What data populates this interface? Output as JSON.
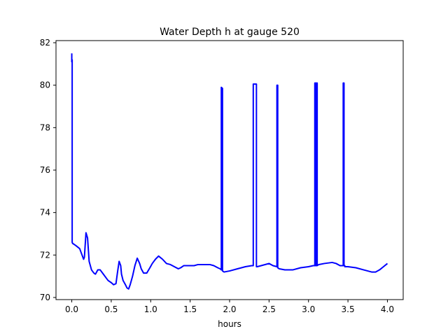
{
  "chart_data": {
    "type": "line",
    "title": "Water Depth h at gauge 520",
    "xlabel": "hours",
    "ylabel": "",
    "xlim": [
      -0.2,
      4.2
    ],
    "ylim": [
      69.9,
      82.1
    ],
    "xticks": [
      0.0,
      0.5,
      1.0,
      1.5,
      2.0,
      2.5,
      3.0,
      3.5,
      4.0
    ],
    "xtick_labels": [
      "0.0",
      "0.5",
      "1.0",
      "1.5",
      "2.0",
      "2.5",
      "3.0",
      "3.5",
      "4.0"
    ],
    "yticks": [
      70,
      72,
      74,
      76,
      78,
      80,
      82
    ],
    "ytick_labels": [
      "70",
      "72",
      "74",
      "76",
      "78",
      "80",
      "82"
    ],
    "grid": false,
    "line_color": "#0000ff",
    "series": [
      {
        "x": [
          0.0,
          0.0,
          0.005,
          0.005,
          0.01,
          0.01,
          0.05,
          0.1,
          0.13,
          0.15,
          0.16,
          0.18,
          0.2,
          0.22,
          0.25,
          0.28,
          0.3,
          0.33,
          0.36,
          0.4,
          0.43,
          0.46,
          0.5,
          0.53,
          0.56,
          0.58,
          0.6,
          0.62,
          0.63,
          0.65,
          0.68,
          0.7,
          0.72,
          0.74,
          0.77,
          0.8,
          0.83,
          0.86,
          0.88,
          0.91,
          0.95,
          0.99,
          1.02,
          1.06,
          1.1,
          1.15,
          1.2,
          1.25,
          1.3,
          1.35,
          1.38,
          1.42,
          1.5,
          1.55,
          1.6,
          1.7,
          1.75,
          1.8,
          1.85,
          1.88,
          1.895,
          1.895,
          1.91,
          1.91,
          1.93,
          2.0,
          2.1,
          2.2,
          2.28,
          2.3,
          2.3,
          2.34,
          2.34,
          2.35,
          2.4,
          2.5,
          2.55,
          2.6,
          2.6,
          2.61,
          2.61,
          2.63,
          2.7,
          2.8,
          2.9,
          3.0,
          3.06,
          3.08,
          3.08,
          3.09,
          3.09,
          3.1,
          3.1,
          3.11,
          3.11,
          3.13,
          3.2,
          3.3,
          3.35,
          3.4,
          3.44,
          3.44,
          3.45,
          3.45,
          3.46,
          3.46,
          3.5,
          3.6,
          3.7,
          3.8,
          3.85,
          3.9,
          3.95,
          4.0
        ],
        "values": [
          81.5,
          81.1,
          81.2,
          72.6,
          72.55,
          72.55,
          72.45,
          72.3,
          72.0,
          71.8,
          71.9,
          73.05,
          72.8,
          71.7,
          71.3,
          71.15,
          71.1,
          71.3,
          71.3,
          71.1,
          70.95,
          70.8,
          70.7,
          70.6,
          70.65,
          71.2,
          71.7,
          71.5,
          71.1,
          70.8,
          70.6,
          70.45,
          70.4,
          70.6,
          71.0,
          71.5,
          71.85,
          71.6,
          71.35,
          71.15,
          71.15,
          71.4,
          71.6,
          71.8,
          71.95,
          71.8,
          71.6,
          71.55,
          71.45,
          71.35,
          71.4,
          71.5,
          71.5,
          71.5,
          71.55,
          71.55,
          71.55,
          71.5,
          71.4,
          71.35,
          71.3,
          79.9,
          79.85,
          71.25,
          71.2,
          71.25,
          71.35,
          71.45,
          71.5,
          71.5,
          80.05,
          80.05,
          71.45,
          71.45,
          71.5,
          71.6,
          71.5,
          71.45,
          80.0,
          80.0,
          71.4,
          71.35,
          71.3,
          71.3,
          71.4,
          71.45,
          71.5,
          71.5,
          80.1,
          80.1,
          71.5,
          71.5,
          80.1,
          80.1,
          71.5,
          71.55,
          71.6,
          71.65,
          71.6,
          71.5,
          71.5,
          80.1,
          80.1,
          71.5,
          71.5,
          71.45,
          71.45,
          71.4,
          71.3,
          71.2,
          71.2,
          71.3,
          71.45,
          71.6
        ]
      }
    ]
  }
}
